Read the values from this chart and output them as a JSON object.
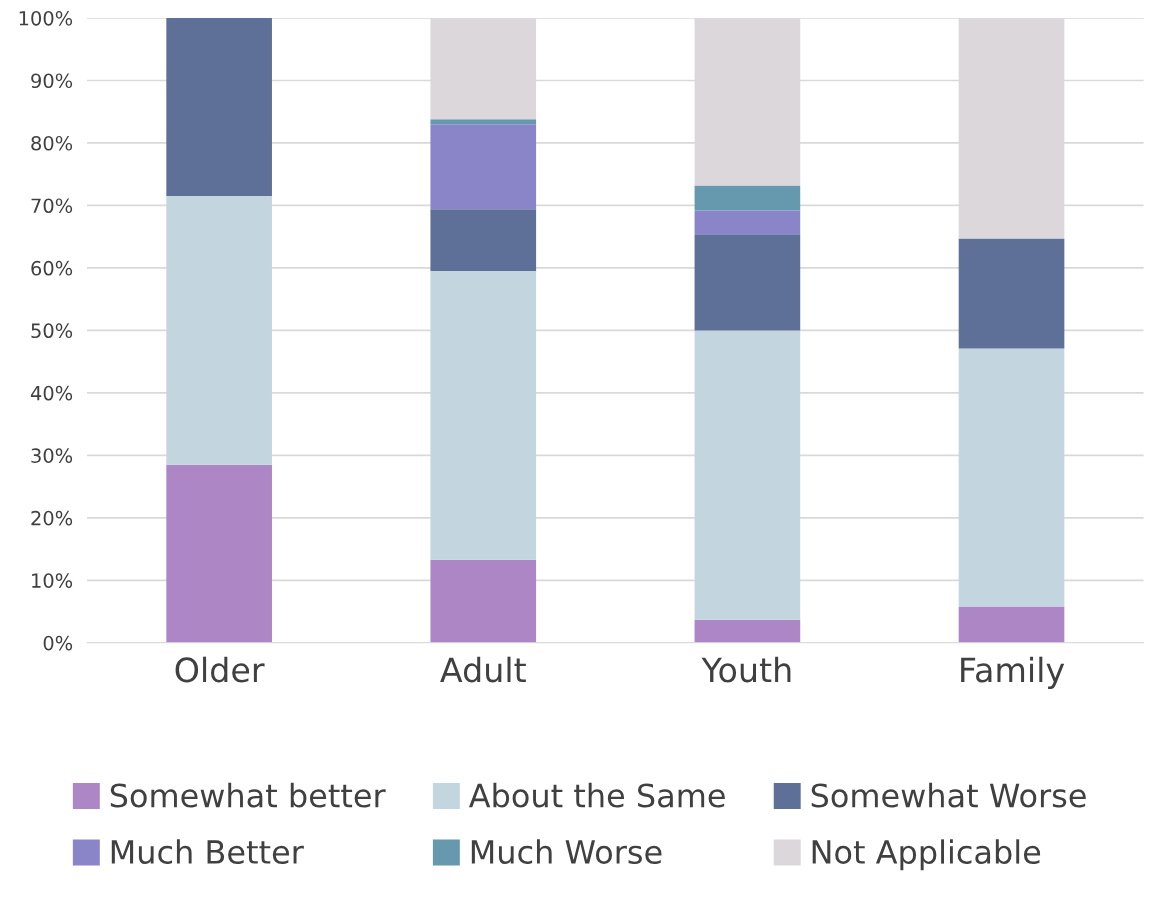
{
  "chart_data": {
    "type": "bar",
    "stacked": true,
    "categories": [
      "Older",
      "Adult",
      "Youth",
      "Family"
    ],
    "series": [
      {
        "name": "Somewhat better",
        "color": "#ad86c6",
        "values": [
          28.5,
          13.3,
          3.7,
          5.8
        ]
      },
      {
        "name": "About the Same",
        "color": "#c3d6df",
        "values": [
          43.0,
          46.2,
          46.3,
          41.3
        ]
      },
      {
        "name": "Somewhat Worse",
        "color": "#5e7098",
        "values": [
          28.5,
          9.9,
          15.4,
          17.6
        ]
      },
      {
        "name": "Much Better",
        "color": "#8a85c8",
        "values": [
          0,
          13.6,
          3.8,
          0
        ]
      },
      {
        "name": "Much Worse",
        "color": "#6699ae",
        "values": [
          0,
          0.8,
          4.0,
          0
        ]
      },
      {
        "name": "Not Applicable",
        "color": "#dcd7db",
        "values": [
          0,
          16.2,
          26.8,
          35.3
        ]
      }
    ],
    "ylim": [
      0,
      100
    ],
    "yticks": [
      {
        "value": 0,
        "label": "0%"
      },
      {
        "value": 10,
        "label": "10%"
      },
      {
        "value": 20,
        "label": "20%"
      },
      {
        "value": 30,
        "label": "30%"
      },
      {
        "value": 40,
        "label": "40%"
      },
      {
        "value": 50,
        "label": "50%"
      },
      {
        "value": 60,
        "label": "60%"
      },
      {
        "value": 70,
        "label": "70%"
      },
      {
        "value": 80,
        "label": "80%"
      },
      {
        "value": 90,
        "label": "90%"
      },
      {
        "value": 100,
        "label": "100%"
      }
    ],
    "grid": "y",
    "legend": "bottom"
  }
}
